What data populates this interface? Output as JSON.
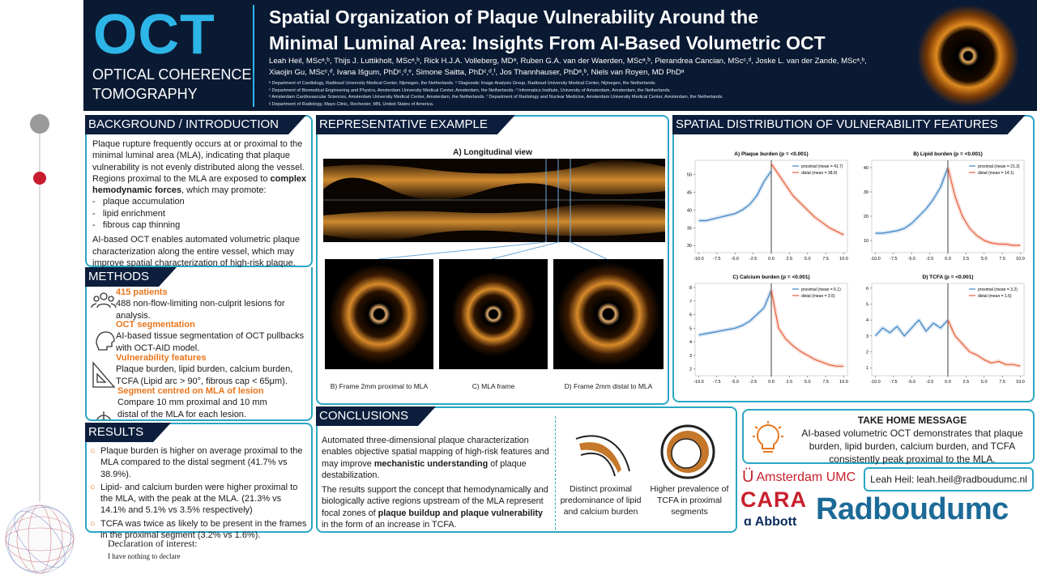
{
  "header": {
    "acronym": "OCT",
    "acronym_full": [
      "OPTICAL COHERENCE",
      "TOMOGRAPHY"
    ],
    "title": [
      "Spatial Organization of Plaque Vulnerability Around the",
      "Minimal Luminal Area: Insights From AI-Based Volumetric OCT"
    ],
    "authors": [
      "Leah Heil, MScᵃ,ᵇ, Thijs J. Luttikholt, MScᵃ,ᵇ, Rick H.J.A. Volleberg, MDᵃ, Ruben G.A. van der Waerden, MScᵃ,ᵇ, Pierandrea Cancian, MScᶜ,ᵈ, Joske L. van der Zande, MScᵃ,ᵇ,",
      "Xiaojin Gu, MScᶜ,ᵈ, Ivana Išgum, PhDᶜ,ᵈ,ᵉ, Simone Saitta, PhDᶜ,ᵈ,ᶠ, Jos Thannhauser, PhDᵃ,ᵇ, Niels van Royen, MD PhDᵃ"
    ],
    "affiliations": [
      "ᵃ Department of Cardiology, Radboud University Medical Center, Nijmegen, the Netherlands. ᵇ Diagnostic Image Analysis Group, Radboud University Medical Center, Nijmegen, the Netherlands.",
      "ᶜ Department of Biomedical Engineering and Physics, Amsterdam University Medical Center, Amsterdam, the Netherlands. ᵈ Informatics Institute, University of Amsterdam, Amsterdam, the Netherlands.",
      "ᵉ Amsterdam Cardiovascular Sciences, Amsterdam University Medical Center, Amsterdam, the Netherlands. ᶠ Department of Radiology and Nuclear Medicine, Amsterdam University Medical Center, Amsterdam, the Netherlands.",
      "ᵍ Department of Radiology, Mayo Clinic, Rochester, MN, United States of America."
    ]
  },
  "background": {
    "heading": "BACKGROUND / INTRODUCTION",
    "intro": [
      "Plaque rupture frequently occurs at or proximal to the minimal luminal area (MLA), indicating that plaque vulnerability is not evenly distributed along the vessel. Regions proximal to the MLA are exposed to ",
      "complex hemodynamic forces",
      ", which may promote:"
    ],
    "list": [
      "plaque accumulation",
      "lipid enrichment",
      "fibrous cap thinning"
    ],
    "closing": "AI-based OCT enables automated volumetric plaque characterization along the entire vessel, which may improve spatial characterization of high-risk plaque."
  },
  "methods": {
    "heading": "METHODS",
    "items": [
      {
        "title": "415 patients",
        "text": "488 non-flow-limiting non-culprit lesions for analysis."
      },
      {
        "title": "OCT segmentation",
        "text": "AI-based tissue segmentation of OCT pullbacks with OCT-AID model."
      },
      {
        "title": "Vulnerability features",
        "text": "Plaque burden, lipid burden, calcium burden, TCFA (Lipid arc > 90°, fibrous cap < 65μm)."
      },
      {
        "title": "Segment centred on MLA of lesion",
        "text": "Compare 10 mm proximal and 10 mm distal of the MLA for each lesion."
      }
    ]
  },
  "results": {
    "heading": "RESULTS",
    "items": [
      "Plaque burden is higher on average proximal to the MLA compared to the distal segment (41.7% vs 38.9%).",
      "Lipid- and calcium burden were higher proximal to the MLA, with the peak at the MLA. (21.3% vs 14.1% and 5.1% vs 3.5% respectively)",
      "TCFA was twice as likely to be present in the frames in the proximal segment (3.2% vs 1.6%)."
    ]
  },
  "example": {
    "heading": "REPRESENTATIVE EXAMPLE",
    "longitudinal": "A) Longitudinal view",
    "frames": [
      "B) Frame 2mm proximal to MLA",
      "C) MLA frame",
      "D) Frame 2mm distal to MLA"
    ]
  },
  "spatial": {
    "heading": "SPATIAL DISTRIBUTION OF VULNERABILITY FEATURES"
  },
  "chart_data": [
    {
      "type": "line",
      "title": "A) Plaque burden (p = <0.001)",
      "x": [
        -10,
        -9,
        -8,
        -7,
        -6,
        -5,
        -4,
        -3,
        -2,
        -1,
        0,
        1,
        2,
        3,
        4,
        5,
        6,
        7,
        8,
        9,
        10
      ],
      "xlim": [
        -10.5,
        10.5
      ],
      "xticks": [
        {
          "value": -10,
          "label": "-10.0"
        },
        {
          "value": -7.5,
          "label": "-7.5"
        },
        {
          "value": -5,
          "label": "-5.0"
        },
        {
          "value": -2.5,
          "label": "-2.5"
        },
        {
          "value": 0,
          "label": "0.0"
        },
        {
          "value": 2.5,
          "label": "2.5"
        },
        {
          "value": 5,
          "label": "5.0"
        },
        {
          "value": 7.5,
          "label": "7.5"
        },
        {
          "value": 10,
          "label": "10.0"
        }
      ],
      "ylim": [
        28,
        54
      ],
      "yticks": [
        30,
        35,
        40,
        45,
        50
      ],
      "series": [
        {
          "name": "proximal (mean = 41.7)",
          "color": "#3b82c4",
          "values": [
            37,
            37,
            37.5,
            38,
            38.5,
            39,
            40,
            41.5,
            44,
            48,
            51,
            null,
            null,
            null,
            null,
            null,
            null,
            null,
            null,
            null,
            null
          ]
        },
        {
          "name": "distal (mean = 38.9)",
          "color": "#e4603c",
          "values": [
            null,
            null,
            null,
            null,
            null,
            null,
            null,
            null,
            null,
            null,
            53,
            50,
            47,
            44,
            42,
            40,
            38,
            36.5,
            35,
            34,
            33
          ]
        }
      ]
    },
    {
      "type": "line",
      "title": "B) Lipid burden (p = <0.001)",
      "x": [
        -10,
        -9,
        -8,
        -7,
        -6,
        -5,
        -4,
        -3,
        -2,
        -1,
        0,
        1,
        2,
        3,
        4,
        5,
        6,
        7,
        8,
        9,
        10
      ],
      "xlim": [
        -10.5,
        10.5
      ],
      "xticks": [
        {
          "value": -10,
          "label": "-10.0"
        },
        {
          "value": -7.5,
          "label": "-7.5"
        },
        {
          "value": -5,
          "label": "-5.0"
        },
        {
          "value": -2.5,
          "label": "-2.5"
        },
        {
          "value": 0,
          "label": "0.0"
        },
        {
          "value": 2.5,
          "label": "2.5"
        },
        {
          "value": 5,
          "label": "5.0"
        },
        {
          "value": 7.5,
          "label": "7.5"
        },
        {
          "value": 10,
          "label": "10.0"
        }
      ],
      "ylim": [
        5,
        43
      ],
      "yticks": [
        10,
        20,
        30,
        40
      ],
      "series": [
        {
          "name": "proximal (mean = 21.3)",
          "color": "#3b82c4",
          "values": [
            13,
            13,
            13.5,
            14,
            15,
            17,
            20,
            23,
            27,
            32,
            40,
            null,
            null,
            null,
            null,
            null,
            null,
            null,
            null,
            null,
            null
          ]
        },
        {
          "name": "distal (mean = 14.1)",
          "color": "#e4603c",
          "values": [
            null,
            null,
            null,
            null,
            null,
            null,
            null,
            null,
            null,
            null,
            40,
            28,
            20,
            15,
            12,
            10,
            9,
            8.5,
            8.5,
            8,
            8
          ]
        }
      ]
    },
    {
      "type": "line",
      "title": "C) Calcium burden (p = <0.001)",
      "x": [
        -10,
        -9,
        -8,
        -7,
        -6,
        -5,
        -4,
        -3,
        -2,
        -1,
        0,
        1,
        2,
        3,
        4,
        5,
        6,
        7,
        8,
        9,
        10
      ],
      "xlim": [
        -10.5,
        10.5
      ],
      "xticks": [
        {
          "value": -10,
          "label": "-10.0"
        },
        {
          "value": -7.5,
          "label": "-7.5"
        },
        {
          "value": -5,
          "label": "-5.0"
        },
        {
          "value": -2.5,
          "label": "-2.5"
        },
        {
          "value": 0,
          "label": "0.0"
        },
        {
          "value": 2.5,
          "label": "2.5"
        },
        {
          "value": 5,
          "label": "5.0"
        },
        {
          "value": 7.5,
          "label": "7.5"
        },
        {
          "value": 10,
          "label": "10.0"
        }
      ],
      "ylim": [
        1.5,
        8.3
      ],
      "yticks": [
        2,
        3,
        4,
        5,
        6,
        7,
        8
      ],
      "series": [
        {
          "name": "proximal (mean = 5.1)",
          "color": "#3b82c4",
          "values": [
            4.5,
            4.6,
            4.7,
            4.8,
            4.9,
            5.0,
            5.2,
            5.5,
            6,
            6.5,
            7.8,
            null,
            null,
            null,
            null,
            null,
            null,
            null,
            null,
            null,
            null
          ]
        },
        {
          "name": "distal (mean = 3.5)",
          "color": "#e4603c",
          "values": [
            null,
            null,
            null,
            null,
            null,
            null,
            null,
            null,
            null,
            null,
            7.8,
            5,
            4.2,
            3.7,
            3.3,
            3,
            2.7,
            2.5,
            2.3,
            2.2,
            2.2
          ]
        }
      ]
    },
    {
      "type": "line",
      "title": "D) TCFA (p = <0.001)",
      "x": [
        -10,
        -9,
        -8,
        -7,
        -6,
        -5,
        -4,
        -3,
        -2,
        -1,
        0,
        1,
        2,
        3,
        4,
        5,
        6,
        7,
        8,
        9,
        10
      ],
      "xlim": [
        -10.5,
        10.5
      ],
      "xticks": [
        {
          "value": -10,
          "label": "-10.0"
        },
        {
          "value": -7.5,
          "label": "-7.5"
        },
        {
          "value": -5,
          "label": "-5.0"
        },
        {
          "value": -2.5,
          "label": "-2.5"
        },
        {
          "value": 0,
          "label": "0.0"
        },
        {
          "value": 2.5,
          "label": "2.5"
        },
        {
          "value": 5,
          "label": "5.0"
        },
        {
          "value": 7.5,
          "label": "7.5"
        },
        {
          "value": 10,
          "label": "10.0"
        }
      ],
      "ylim": [
        0.5,
        6.3
      ],
      "yticks": [
        1,
        2,
        3,
        4,
        5,
        6
      ],
      "series": [
        {
          "name": "proximal (mean = 3.2)",
          "color": "#3b82c4",
          "values": [
            3,
            3.5,
            3.2,
            3.6,
            3,
            3.5,
            4,
            3.3,
            3.8,
            3.5,
            4,
            null,
            null,
            null,
            null,
            null,
            null,
            null,
            null,
            null,
            null
          ]
        },
        {
          "name": "distal (mean = 1.6)",
          "color": "#e4603c",
          "values": [
            null,
            null,
            null,
            null,
            null,
            null,
            null,
            null,
            null,
            null,
            4,
            3,
            2.5,
            2,
            1.8,
            1.5,
            1.3,
            1.4,
            1.2,
            1.2,
            1.1
          ]
        }
      ]
    }
  ],
  "conclusions": {
    "heading": "CONCLUSIONS",
    "paragraphs": [
      [
        "Automated three-dimensional plaque characterization enables objective spatial mapping of high-risk features and may improve ",
        "mechanistic understanding",
        " of plaque destabilization."
      ],
      [
        "The results support the concept that hemodynamically and biologically active regions upstream of the MLA represent focal zones of ",
        "plaque buildup and plaque vulnerability",
        " in the form of an increase in TCFA."
      ]
    ],
    "figures": [
      "Distinct proximal predominance of lipid and calcium burden",
      "Higher prevalence of TCFA in proximal segments"
    ]
  },
  "take_home": {
    "heading": "TAKE HOME MESSAGE",
    "text": "AI-based volumetric OCT demonstrates that plaque burden, lipid burden, calcium burden, and TCFA consistently peak proximal to the MLA."
  },
  "contact": "Leah Heil: leah.heil@radboudumc.nl",
  "logos": [
    "Amsterdam UMC",
    "CARA",
    "Abbott",
    "Radboudumc"
  ],
  "declaration": {
    "title": "Declaration of interest:",
    "text": "I have nothing to declare"
  }
}
